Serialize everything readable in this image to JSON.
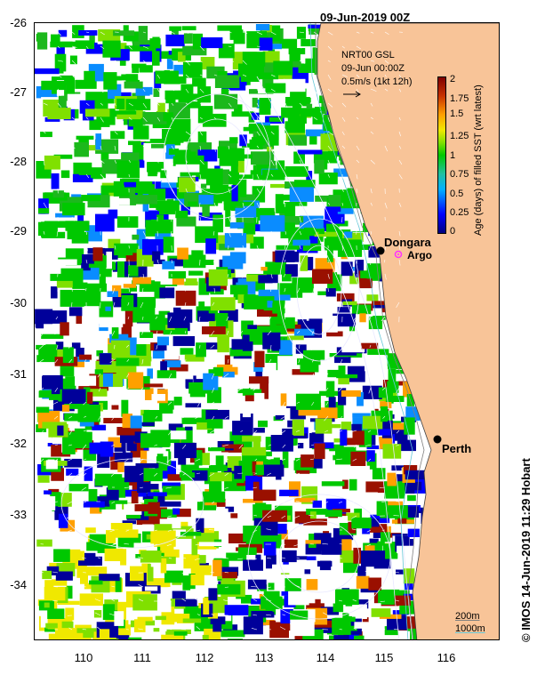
{
  "map": {
    "title": "09-Jun-2019 00Z",
    "product": "NRT00 GSL",
    "product_time": "09-Jun 00:00Z",
    "vector_scale": "0.5m/s (1kt 12h)",
    "latitude_labels": [
      "-26",
      "-27",
      "-28",
      "-29",
      "-30",
      "-31",
      "-32",
      "-33",
      "-34"
    ],
    "longitude_labels": [
      "110",
      "111",
      "112",
      "113",
      "114",
      "115",
      "116"
    ],
    "colorbar": {
      "label": "Age (days) of filled SST (wrt latest)",
      "ticks": [
        "2",
        "1.75",
        "1.5",
        "1.25",
        "1",
        "0.75",
        "0.5",
        "0.25",
        "0"
      ],
      "range": [
        0,
        2
      ]
    },
    "places": {
      "dongara": "Dongara",
      "argo": "Argo",
      "perth": "Perth"
    },
    "scale": {
      "contour_200": "200m",
      "contour_1000": "1000m"
    },
    "copyright": "© IMOS 14-Jun-2019 11:29 Hobart",
    "colors": {
      "land": "#f8c498",
      "argo": "#ff30ff",
      "isobath_200": "#808080",
      "isobath_1000": "#66c8d8"
    }
  }
}
